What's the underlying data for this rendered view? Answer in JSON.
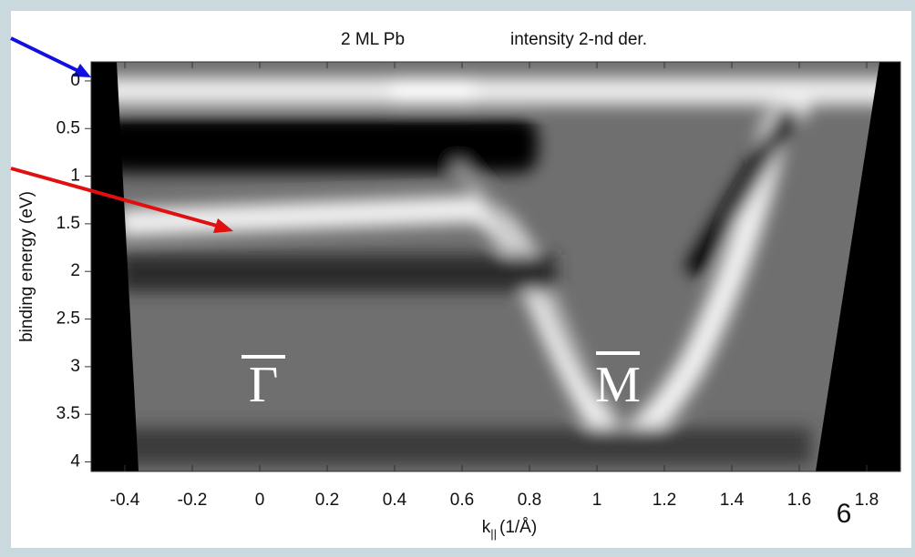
{
  "chart_data": {
    "type": "image",
    "title_left": "2 ML Pb",
    "title_right": "intensity 2-nd der.",
    "x_label": "k",
    "x_label_sub": "||",
    "x_label_unit": "(1/Å)",
    "y_label": "binding energy (eV)",
    "xlim": [
      -0.5,
      1.9
    ],
    "ylim": [
      -0.2,
      4.1
    ],
    "y_inverted": true,
    "xticks": [
      -0.4,
      -0.2,
      0,
      0.2,
      0.4,
      0.6,
      0.8,
      1,
      1.2,
      1.4,
      1.6,
      1.8
    ],
    "yticks": [
      0,
      0.5,
      1,
      1.5,
      2,
      2.5,
      3,
      3.5,
      4
    ],
    "annotations": [
      "Γ",
      "M"
    ],
    "page_number": "6"
  }
}
